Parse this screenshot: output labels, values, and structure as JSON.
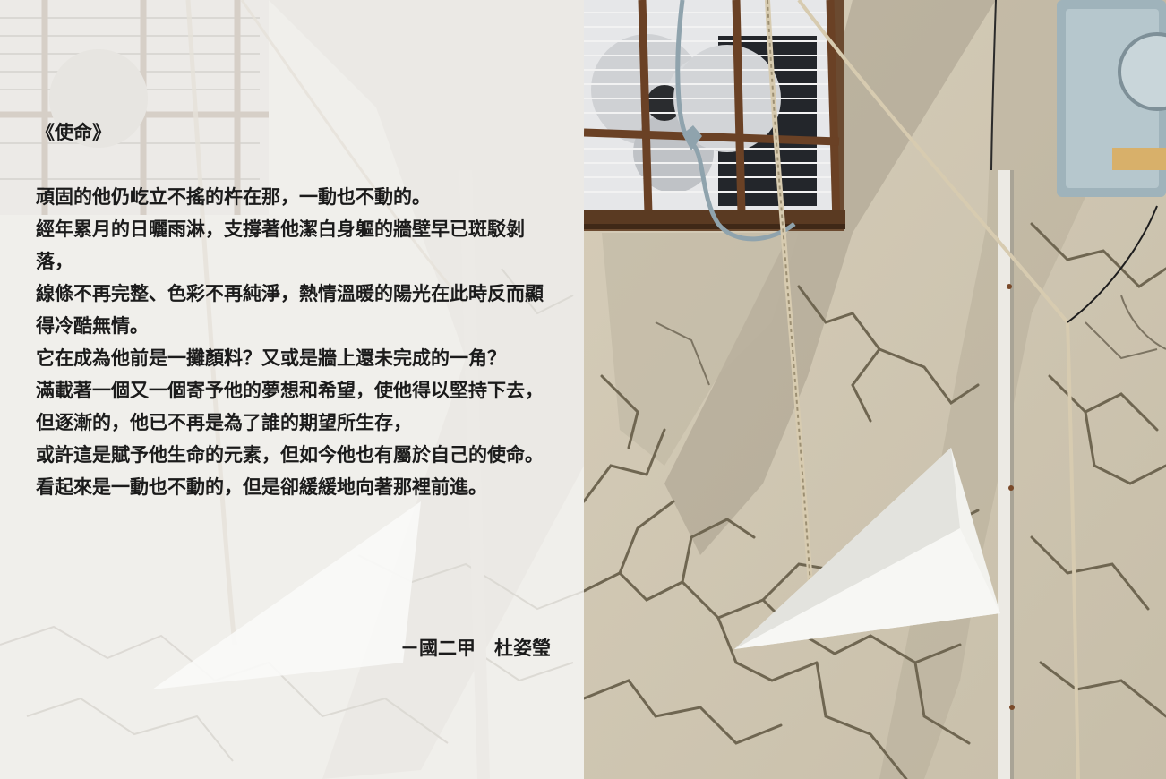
{
  "poem": {
    "title": "《使命》",
    "lines": [
      "頑固的他仍屹立不搖的杵在那，一動也不動的。",
      "經年累月的日曬雨淋，支撐著他潔白身軀的牆壁早已斑駁剝落，",
      "線條不再完整、色彩不再純淨，熱情溫暖的陽光在此時反而顯得冷酷無情。",
      "它在成為他前是一攤顏料？又或是牆上還未完成的一角？",
      "滿載著一個又一個寄予他的夢想和希望，使他得以堅持下去，",
      "但逐漸的，他已不再是為了誰的期望所生存，",
      "或許這是賦予他生命的元素，但如今他也有屬於自己的使命。",
      "看起來是一動也不動的，但是卻緩緩地向著那裡前進。"
    ],
    "author": "－國二甲　杜姿瑩"
  },
  "colors": {
    "wall": "#cfc6b4",
    "crack": "#6f6651",
    "window_frame": "#5a3a22",
    "paper_plane": "#f2f2ee",
    "text": "#1b1b1b"
  }
}
